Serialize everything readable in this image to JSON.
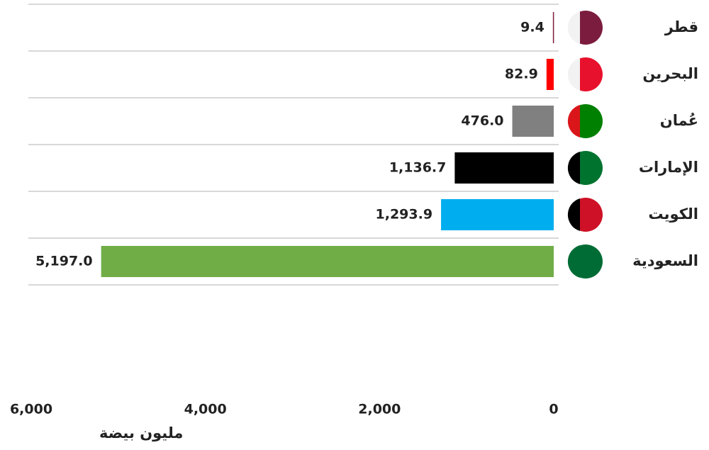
{
  "chart_data": {
    "type": "barh",
    "categories": [
      "قطر",
      "البحرين",
      "عُمان",
      "الإمارات",
      "الكويت",
      "السعودية"
    ],
    "values": [
      9.4,
      82.9,
      476.0,
      1136.7,
      1293.9,
      5197.0
    ],
    "value_labels": [
      "9.4",
      "82.9",
      "476.0",
      "1,136.7",
      "1,293.9",
      "5,197.0"
    ],
    "colors": [
      "#7b1c3f",
      "#ff0000",
      "#808080",
      "#000000",
      "#00aeef",
      "#70ad47"
    ],
    "xlabel": "مليون بيضة",
    "xlim": [
      0,
      6000
    ],
    "xticks": [
      0,
      {
        "value": 2000,
        "label": "2,000"
      },
      {
        "value": 4000,
        "label": "4,000"
      },
      {
        "value": 6000,
        "label": "6,000"
      }
    ],
    "reversed_x": true
  }
}
